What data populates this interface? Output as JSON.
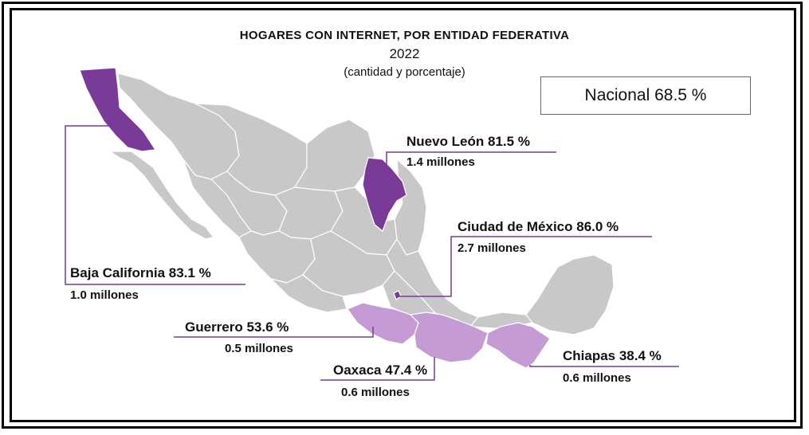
{
  "title": "HOGARES CON INTERNET, POR ENTIDAD FEDERATIVA",
  "year": "2022",
  "subtitle": "(cantidad y porcentaje)",
  "national": "Nacional 68.5 %",
  "colors": {
    "base": "#c8c8c8",
    "border": "#ffffff",
    "high": "#7a3a98",
    "low": "#c49bd4",
    "leader": "#7a3a98"
  },
  "states": {
    "baja_california": {
      "label": "Baja California  83.1 %",
      "households": "1.0 millones",
      "level": "high"
    },
    "nuevo_leon": {
      "label": "Nuevo León 81.5 %",
      "households": "1.4 millones",
      "level": "high"
    },
    "cdmx": {
      "label": "Ciudad de México 86.0 %",
      "households": "2.7 millones",
      "level": "high"
    },
    "guerrero": {
      "label": "Guerrero 53.6 %",
      "households": "0.5 millones",
      "level": "low"
    },
    "oaxaca": {
      "label": "Oaxaca 47.4 %",
      "households": "0.6 millones",
      "level": "low"
    },
    "chiapas": {
      "label": "Chiapas 38.4 %",
      "households": "0.6 millones",
      "level": "low"
    }
  }
}
